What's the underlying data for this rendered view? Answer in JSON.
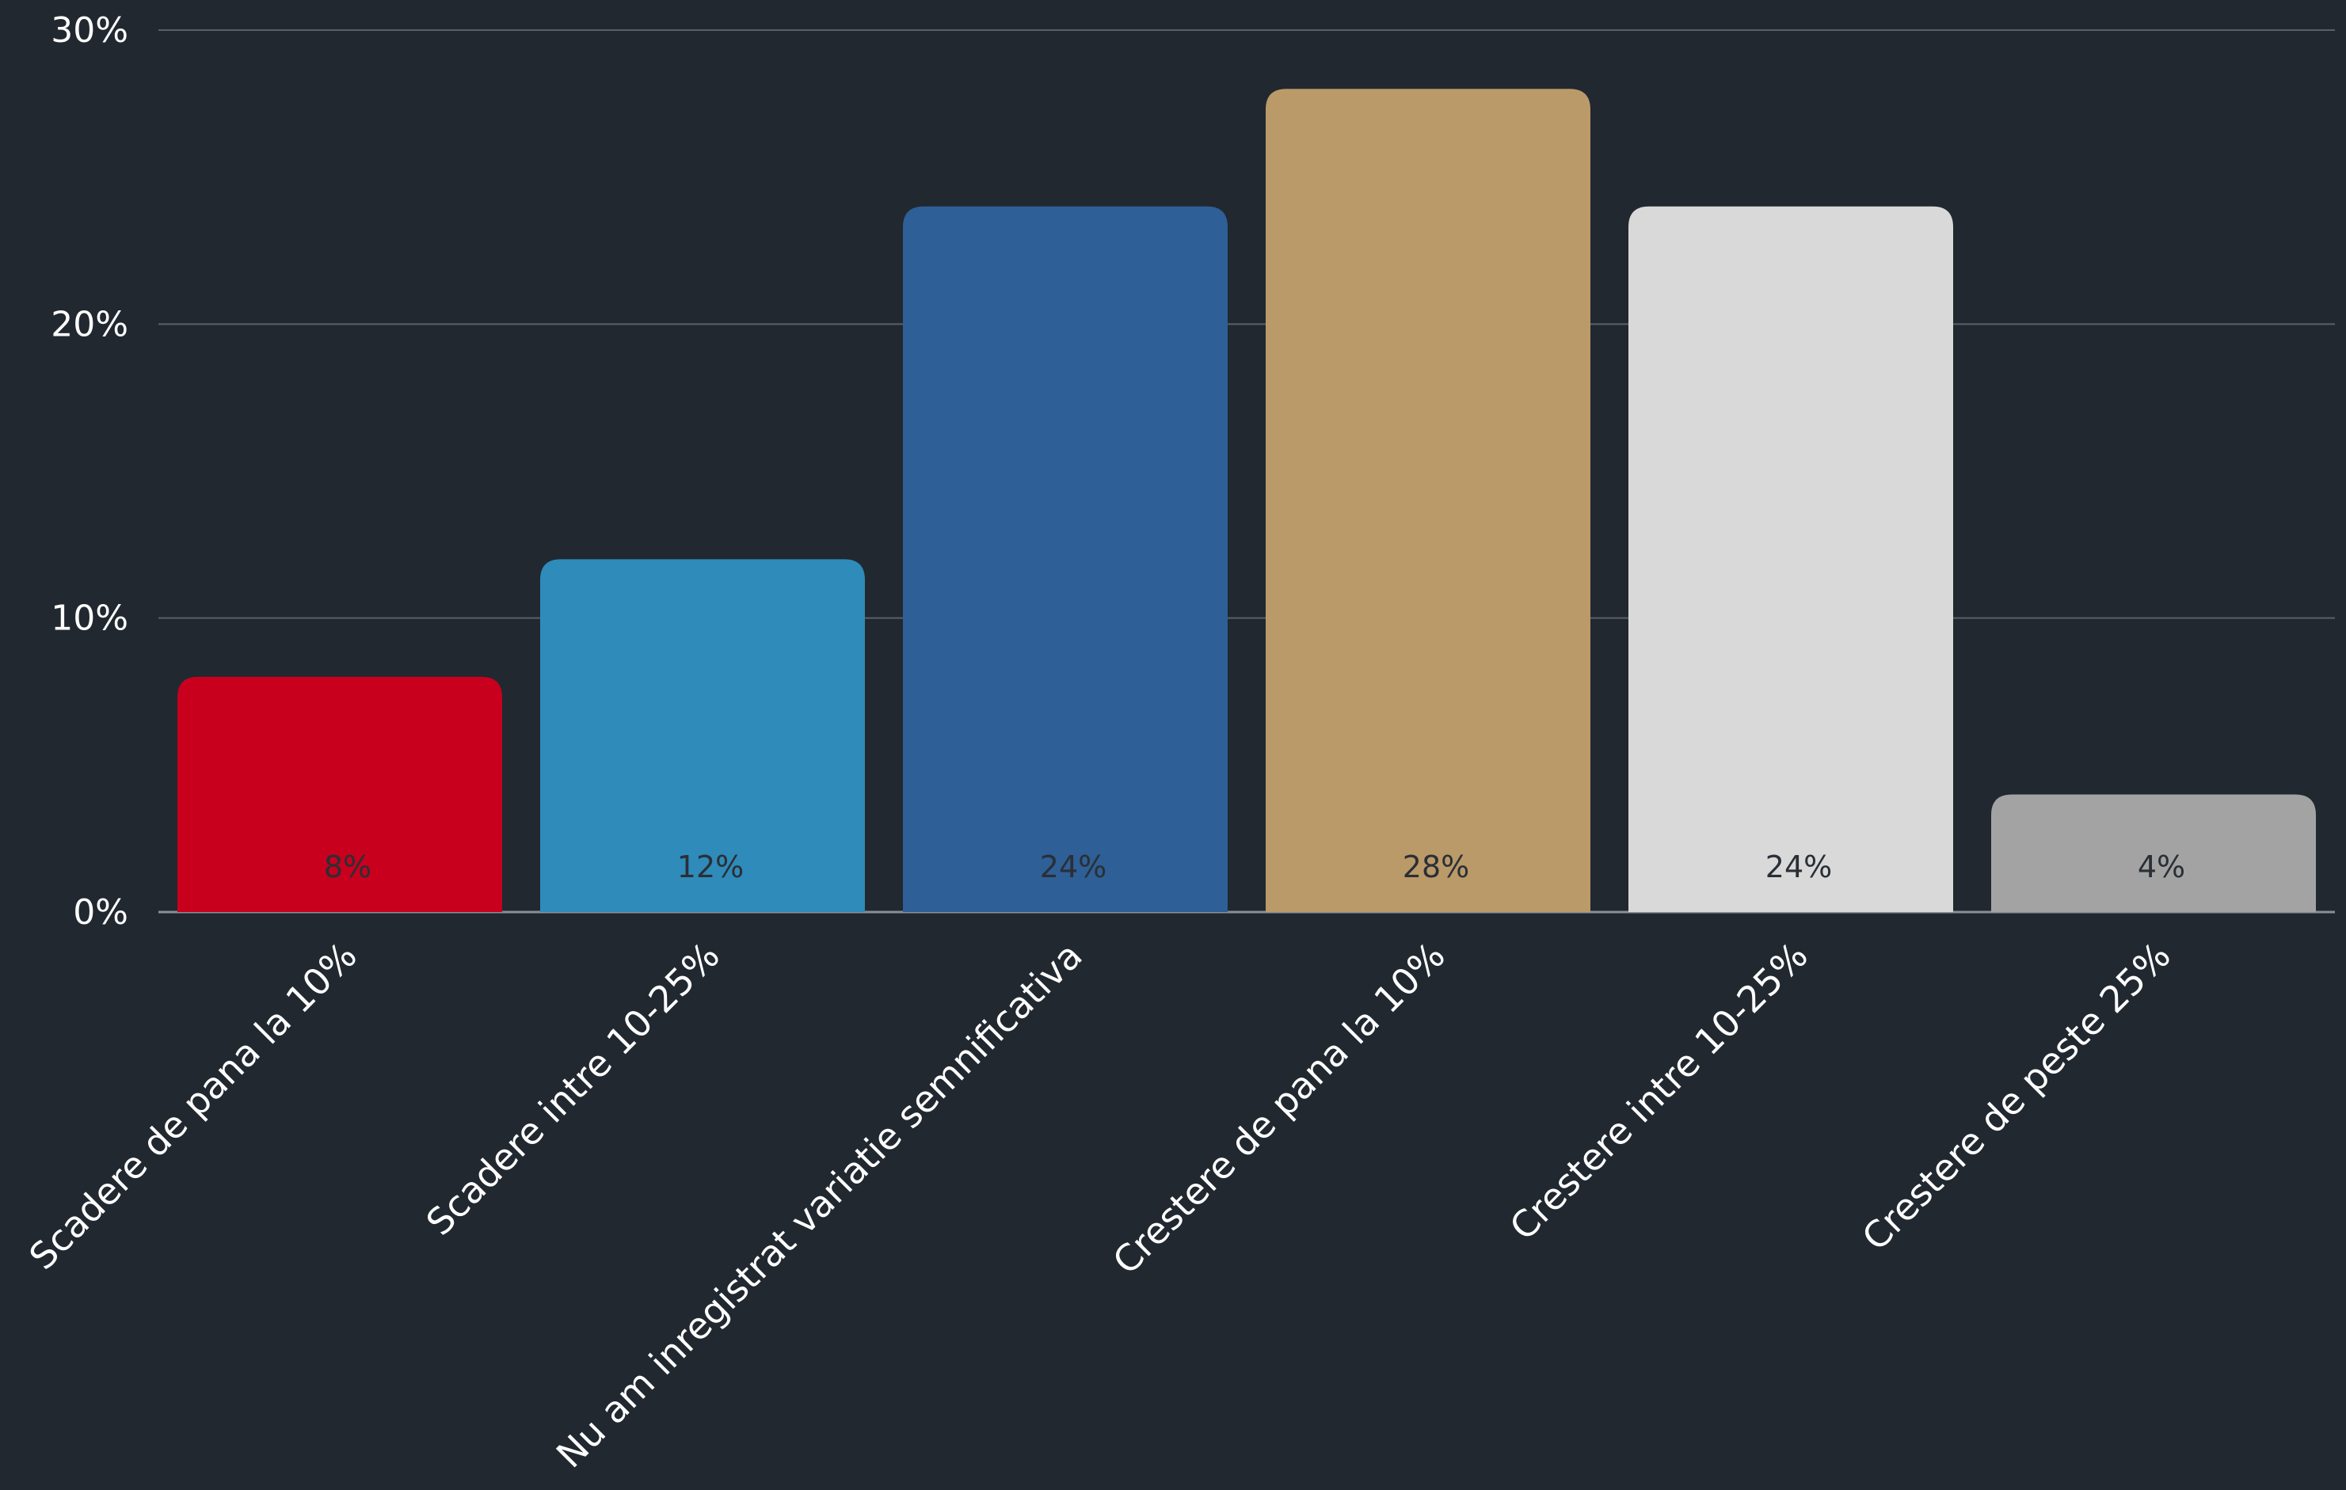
{
  "chart_data": {
    "type": "bar",
    "categories": [
      "Scadere de pana la 10%",
      "Scadere intre 10-25%",
      "Nu am inregistrat variatie semnificativa",
      "Crestere de pana la 10%",
      "Crestere intre 10-25%",
      "Crestere de peste 25%"
    ],
    "values": [
      8,
      12,
      24,
      28,
      24,
      4
    ],
    "data_labels": [
      "8%",
      "12%",
      "24%",
      "28%",
      "24%",
      "4%"
    ],
    "bar_colors": [
      "#c8001e",
      "#2e8bba",
      "#2e5f96",
      "#ba9a68",
      "#d9d9d9",
      "#a3a3a3"
    ],
    "ylim": [
      0,
      30
    ],
    "yticks": [
      0,
      10,
      20,
      30
    ],
    "ytick_labels": [
      "0%",
      "10%",
      "20%",
      "30%"
    ],
    "grid": true,
    "legend": "none",
    "background_color": "#212830",
    "gridline_color": "#5b6068",
    "tick_label_color": "#ffffff",
    "data_label_color": "#2a2f36"
  }
}
